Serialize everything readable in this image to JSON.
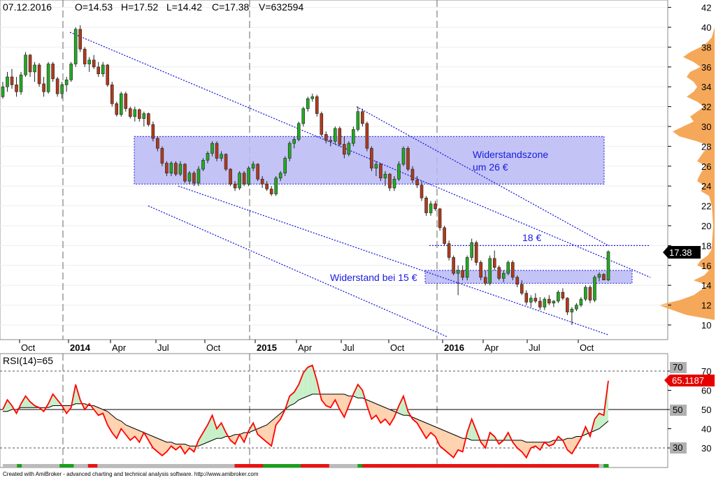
{
  "header": {
    "date": "07.12.2016",
    "open": "O=14.53",
    "high": "H=17.52",
    "low": "L=14.42",
    "close": "C=17.38",
    "volume": "V=632594"
  },
  "chart_data": [
    {
      "type": "candlestick",
      "panel": "price",
      "x_ticks": [
        "Oct",
        "2014",
        "Apr",
        "Jul",
        "Oct",
        "2015",
        "Apr",
        "Jul",
        "Oct",
        "2016",
        "Apr",
        "Jul",
        "Oct"
      ],
      "y_ticks": [
        "10",
        "12",
        "14",
        "16",
        "18",
        "20",
        "22",
        "24",
        "26",
        "28",
        "30",
        "32",
        "34",
        "36",
        "38",
        "40",
        "42"
      ],
      "ylim": [
        8.5,
        42.5
      ],
      "last_price_label": "17.38",
      "candles": [
        [
          33.0,
          34.5,
          32.8,
          34.0
        ],
        [
          34.0,
          35.5,
          33.5,
          35.0
        ],
        [
          35.0,
          35.8,
          33.8,
          34.2
        ],
        [
          34.2,
          35.0,
          33.0,
          33.5
        ],
        [
          33.5,
          35.5,
          33.2,
          35.2
        ],
        [
          35.2,
          37.5,
          35.0,
          37.2
        ],
        [
          37.2,
          37.3,
          35.0,
          35.5
        ],
        [
          35.5,
          36.5,
          34.5,
          36.2
        ],
        [
          36.2,
          36.4,
          34.0,
          34.3
        ],
        [
          34.3,
          35.0,
          33.0,
          33.5
        ],
        [
          33.5,
          36.5,
          33.3,
          36.3
        ],
        [
          36.3,
          36.5,
          34.5,
          34.8
        ],
        [
          34.8,
          35.0,
          33.0,
          33.3
        ],
        [
          33.3,
          34.5,
          32.8,
          34.2
        ],
        [
          34.2,
          35.0,
          33.5,
          34.7
        ],
        [
          34.7,
          36.5,
          34.5,
          36.3
        ],
        [
          36.3,
          40.0,
          36.0,
          39.8
        ],
        [
          39.8,
          40.2,
          37.5,
          37.8
        ],
        [
          37.8,
          38.0,
          36.0,
          36.3
        ],
        [
          36.3,
          37.0,
          35.5,
          36.7
        ],
        [
          36.7,
          37.2,
          35.8,
          36.0
        ],
        [
          36.0,
          36.5,
          35.0,
          35.3
        ],
        [
          35.3,
          36.5,
          35.0,
          36.2
        ],
        [
          36.2,
          36.3,
          34.0,
          34.2
        ],
        [
          34.2,
          34.5,
          32.0,
          32.3
        ],
        [
          32.3,
          32.5,
          31.0,
          31.2
        ],
        [
          31.2,
          33.5,
          31.0,
          33.3
        ],
        [
          33.3,
          33.5,
          31.5,
          31.8
        ],
        [
          31.8,
          32.0,
          30.8,
          31.0
        ],
        [
          31.0,
          32.0,
          30.5,
          31.7
        ],
        [
          31.7,
          31.8,
          30.5,
          30.8
        ],
        [
          30.8,
          31.5,
          30.0,
          31.3
        ],
        [
          31.3,
          31.4,
          30.0,
          30.2
        ],
        [
          30.2,
          30.5,
          28.5,
          28.8
        ],
        [
          28.8,
          29.0,
          27.5,
          27.8
        ],
        [
          27.8,
          28.0,
          26.0,
          26.3
        ],
        [
          26.3,
          26.5,
          25.0,
          25.3
        ],
        [
          25.3,
          26.5,
          25.0,
          26.3
        ],
        [
          26.3,
          26.5,
          25.0,
          25.2
        ],
        [
          25.2,
          26.5,
          25.0,
          26.2
        ],
        [
          26.2,
          26.3,
          24.3,
          24.5
        ],
        [
          24.5,
          25.5,
          24.2,
          25.3
        ],
        [
          25.3,
          25.5,
          24.0,
          24.3
        ],
        [
          24.3,
          26.0,
          24.0,
          25.7
        ],
        [
          25.7,
          26.8,
          25.5,
          26.6
        ],
        [
          26.6,
          27.5,
          26.3,
          27.3
        ],
        [
          27.3,
          28.5,
          27.0,
          28.3
        ],
        [
          28.3,
          28.5,
          26.5,
          26.8
        ],
        [
          26.8,
          27.5,
          26.5,
          27.2
        ],
        [
          27.2,
          27.3,
          25.5,
          25.7
        ],
        [
          25.7,
          25.8,
          24.0,
          24.2
        ],
        [
          24.2,
          24.5,
          23.5,
          23.8
        ],
        [
          23.8,
          25.5,
          23.6,
          25.3
        ],
        [
          25.3,
          25.5,
          24.0,
          24.2
        ],
        [
          24.2,
          26.0,
          24.0,
          25.8
        ],
        [
          25.8,
          26.5,
          25.5,
          26.2
        ],
        [
          26.2,
          26.3,
          24.5,
          24.7
        ],
        [
          24.7,
          25.0,
          23.8,
          24.2
        ],
        [
          24.2,
          24.5,
          23.5,
          23.7
        ],
        [
          23.7,
          24.0,
          23.0,
          23.2
        ],
        [
          23.2,
          25.0,
          23.0,
          24.8
        ],
        [
          24.8,
          25.5,
          24.5,
          25.3
        ],
        [
          25.3,
          27.0,
          25.0,
          26.8
        ],
        [
          26.8,
          28.5,
          26.5,
          28.3
        ],
        [
          28.3,
          29.0,
          27.8,
          28.7
        ],
        [
          28.7,
          30.5,
          28.5,
          30.3
        ],
        [
          30.3,
          32.0,
          30.0,
          31.8
        ],
        [
          31.8,
          33.0,
          31.5,
          32.8
        ],
        [
          32.8,
          33.3,
          32.5,
          33.0
        ],
        [
          33.0,
          33.2,
          31.0,
          31.3
        ],
        [
          31.3,
          31.5,
          29.0,
          29.2
        ],
        [
          29.2,
          29.5,
          28.3,
          28.6
        ],
        [
          28.6,
          29.0,
          28.0,
          28.5
        ],
        [
          28.5,
          30.0,
          28.2,
          29.8
        ],
        [
          29.8,
          30.0,
          28.0,
          28.2
        ],
        [
          28.2,
          29.0,
          26.8,
          27.2
        ],
        [
          27.2,
          28.5,
          27.0,
          28.3
        ],
        [
          28.3,
          30.0,
          28.0,
          29.7
        ],
        [
          29.7,
          32.0,
          29.5,
          31.5
        ],
        [
          31.5,
          31.8,
          30.0,
          30.3
        ],
        [
          30.3,
          30.5,
          27.5,
          27.8
        ],
        [
          27.8,
          28.0,
          25.5,
          25.8
        ],
        [
          25.8,
          26.5,
          25.0,
          26.2
        ],
        [
          26.2,
          26.3,
          24.5,
          24.8
        ],
        [
          24.8,
          25.5,
          24.0,
          25.2
        ],
        [
          25.2,
          25.3,
          23.5,
          23.8
        ],
        [
          23.8,
          25.0,
          23.5,
          24.7
        ],
        [
          24.7,
          26.5,
          24.5,
          26.2
        ],
        [
          26.2,
          28.0,
          26.0,
          27.8
        ],
        [
          27.8,
          28.0,
          25.5,
          25.7
        ],
        [
          25.7,
          26.0,
          24.3,
          24.6
        ],
        [
          24.6,
          25.0,
          23.8,
          24.1
        ],
        [
          24.1,
          24.5,
          22.5,
          22.8
        ],
        [
          22.8,
          23.0,
          21.0,
          21.3
        ],
        [
          21.3,
          22.5,
          21.0,
          22.2
        ],
        [
          22.2,
          22.5,
          21.5,
          21.7
        ],
        [
          21.7,
          21.8,
          19.5,
          19.8
        ],
        [
          19.8,
          20.0,
          18.0,
          18.2
        ],
        [
          18.2,
          18.5,
          16.5,
          16.8
        ],
        [
          16.8,
          17.0,
          15.0,
          15.2
        ],
        [
          15.2,
          16.0,
          13.0,
          15.5
        ],
        [
          15.5,
          16.0,
          14.5,
          14.8
        ],
        [
          14.8,
          17.0,
          14.5,
          16.8
        ],
        [
          16.8,
          18.7,
          16.5,
          18.3
        ],
        [
          18.3,
          18.5,
          16.0,
          16.3
        ],
        [
          16.3,
          16.5,
          14.5,
          14.8
        ],
        [
          14.8,
          15.5,
          14.0,
          14.2
        ],
        [
          14.2,
          17.0,
          14.0,
          16.7
        ],
        [
          16.7,
          17.5,
          15.5,
          15.8
        ],
        [
          15.8,
          16.0,
          14.5,
          14.7
        ],
        [
          14.7,
          15.5,
          14.3,
          15.2
        ],
        [
          15.2,
          16.5,
          15.0,
          16.3
        ],
        [
          16.3,
          16.5,
          14.5,
          14.8
        ],
        [
          14.8,
          15.0,
          13.8,
          14.1
        ],
        [
          14.1,
          14.5,
          13.0,
          13.2
        ],
        [
          13.2,
          13.5,
          12.0,
          12.3
        ],
        [
          12.3,
          13.0,
          11.8,
          12.7
        ],
        [
          12.7,
          13.2,
          12.2,
          12.4
        ],
        [
          12.4,
          12.8,
          11.5,
          11.8
        ],
        [
          11.8,
          12.8,
          11.5,
          12.6
        ],
        [
          12.6,
          13.0,
          12.0,
          12.2
        ],
        [
          12.2,
          12.5,
          11.8,
          12.4
        ],
        [
          12.4,
          13.5,
          12.2,
          13.3
        ],
        [
          13.3,
          13.7,
          12.5,
          12.7
        ],
        [
          12.7,
          12.8,
          11.0,
          11.3
        ],
        [
          11.3,
          11.8,
          10.0,
          11.6
        ],
        [
          11.6,
          12.2,
          11.4,
          12.0
        ],
        [
          12.0,
          12.8,
          11.8,
          12.6
        ],
        [
          12.6,
          14.0,
          12.4,
          13.8
        ],
        [
          13.8,
          14.0,
          12.2,
          12.5
        ],
        [
          12.5,
          15.0,
          12.3,
          14.8
        ],
        [
          14.8,
          15.3,
          14.4,
          15.1
        ],
        [
          15.1,
          15.2,
          14.5,
          14.53
        ],
        [
          14.53,
          17.52,
          14.42,
          17.38
        ]
      ]
    },
    {
      "type": "line",
      "panel": "rsi",
      "title": "RSI(14)=65",
      "y_ticks": [
        "30",
        "40",
        "50",
        "60",
        "70"
      ],
      "ylim": [
        22,
        75
      ],
      "level_labels": [
        "70",
        "50",
        "30"
      ],
      "last_value_label": "65.1187",
      "series": [
        {
          "values": [
            50,
            55,
            52,
            48,
            53,
            57,
            54,
            52,
            51,
            49,
            53,
            58,
            55,
            52,
            48,
            51,
            63,
            55,
            50,
            53,
            50,
            47,
            48,
            42,
            38,
            35,
            40,
            37,
            34,
            36,
            33,
            38,
            34,
            30,
            28,
            26,
            28,
            31,
            29,
            31,
            27,
            30,
            28,
            34,
            38,
            42,
            47,
            40,
            43,
            38,
            34,
            32,
            37,
            33,
            39,
            43,
            37,
            35,
            33,
            31,
            42,
            45,
            50,
            57,
            59,
            63,
            69,
            72,
            73,
            65,
            55,
            52,
            51,
            55,
            50,
            46,
            52,
            58,
            63,
            60,
            52,
            45,
            47,
            43,
            45,
            42,
            46,
            52,
            57,
            49,
            45,
            43,
            39,
            35,
            38,
            36,
            31,
            29,
            27,
            25,
            29,
            28,
            38,
            45,
            39,
            33,
            30,
            38,
            36,
            32,
            34,
            38,
            33,
            30,
            28,
            25,
            30,
            31,
            29,
            33,
            31,
            32,
            36,
            34,
            29,
            27,
            31,
            35,
            41,
            36,
            45,
            48,
            47,
            65
          ]
        },
        {
          "values": [
            49,
            49,
            50,
            50,
            51,
            51,
            51,
            51,
            51,
            51,
            51,
            52,
            52,
            52,
            52,
            52,
            53,
            53,
            53,
            52,
            52,
            51,
            50,
            49,
            47,
            45,
            44,
            42,
            41,
            40,
            39,
            38,
            37,
            36,
            35,
            34,
            33,
            33,
            32,
            32,
            32,
            31,
            31,
            31,
            32,
            33,
            34,
            35,
            35,
            36,
            36,
            37,
            37,
            38,
            38,
            39,
            40,
            41,
            42,
            44,
            46,
            48,
            50,
            52,
            53,
            55,
            56,
            57,
            58,
            58,
            58,
            58,
            58,
            58,
            58,
            58,
            57,
            57,
            56,
            56,
            55,
            54,
            53,
            52,
            51,
            50,
            49,
            48,
            47,
            47,
            46,
            45,
            44,
            43,
            42,
            41,
            40,
            39,
            38,
            37,
            36,
            35,
            35,
            34,
            34,
            34,
            34,
            34,
            34,
            34,
            34,
            34,
            34,
            34,
            34,
            33,
            33,
            33,
            33,
            33,
            33,
            34,
            34,
            34,
            35,
            35,
            36,
            36,
            37,
            38,
            39,
            40,
            42,
            44
          ]
        }
      ],
      "x_ticks": []
    }
  ],
  "annotations": {
    "resistance_zone_line1": "Widerstandszone",
    "resistance_zone_line2": "um 26 €",
    "level_18": "18 €",
    "resistance_15": "Widerstand bei 15 €"
  },
  "footer": {
    "credit": "Created with AmiBroker - advanced charting and technical analysis software. http://www.amibroker.com"
  },
  "colors": {
    "up_candle": "#22aa22",
    "down_candle": "#b03a1c",
    "channel_line": "#1a1ae0",
    "zone_fill": "#b8b8f5",
    "volume_profile": "#f5a85a",
    "rsi_line": "#ff0000",
    "rsi_ma": "#000000",
    "rsi_overbought_fill": "#c8f0c8",
    "rsi_oversold_fill": "#ffd2b0"
  }
}
